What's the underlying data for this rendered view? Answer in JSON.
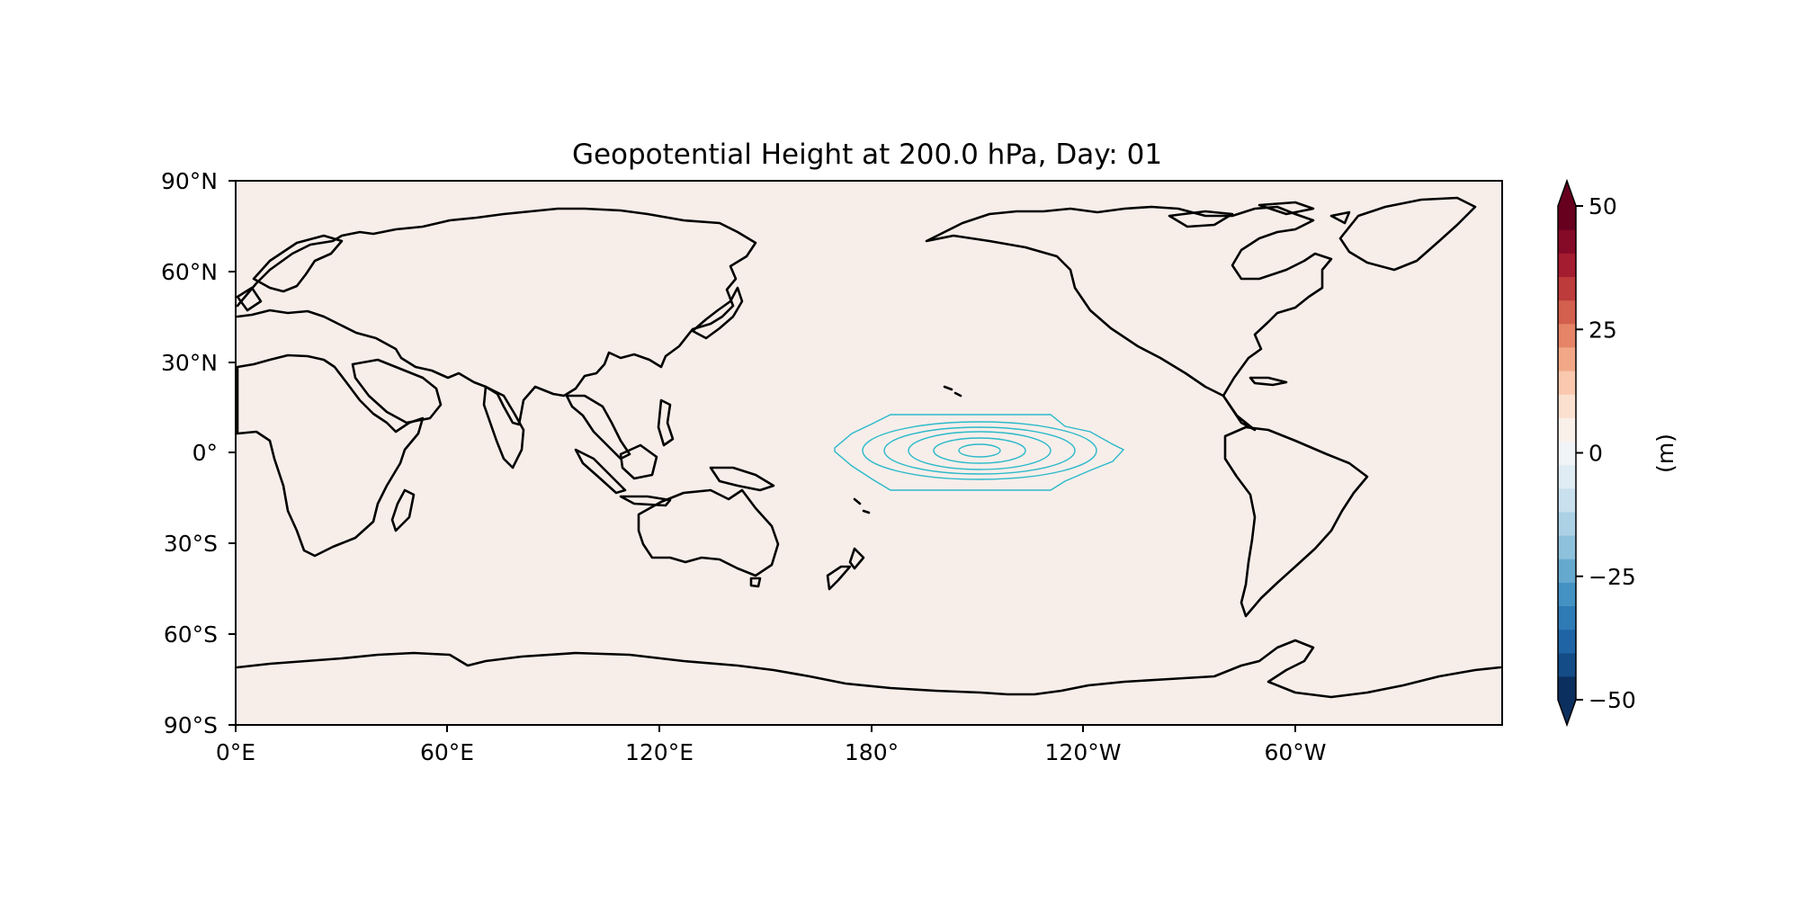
{
  "map": {
    "title": "Geopotential Height at 200.0 hPa, Day: 01",
    "projection": "PlateCarree centered 180°",
    "lon_ticks": [
      "0°E",
      "60°E",
      "120°E",
      "180°",
      "120°W",
      "60°W"
    ],
    "lat_ticks": [
      "90°N",
      "60°N",
      "30°N",
      "0°",
      "30°S",
      "60°S",
      "90°S"
    ],
    "background_color": "#f7eeea",
    "coastline_color": "#000000",
    "contour_color": "#2bb9c9",
    "anomaly_fill_color": "#f5e0d0"
  },
  "colorbar": {
    "label": "(m)",
    "ticks": [
      "50",
      "25",
      "0",
      "−25",
      "−50"
    ],
    "range": [
      -50,
      50
    ],
    "extend": "both",
    "colormap": "RdBu_r",
    "colors": [
      "#0b2f5e",
      "#144c87",
      "#1f65a5",
      "#2f7bb6",
      "#4392c3",
      "#66a9cf",
      "#8ec1dc",
      "#acd1e5",
      "#c9e0ee",
      "#e0ecf4",
      "#f1f4f7",
      "#faf0ea",
      "#fbe0d0",
      "#f9c8ae",
      "#f2a886",
      "#e58466",
      "#d35f4e",
      "#bd3b3b",
      "#a41c30",
      "#850a27",
      "#67001f"
    ]
  },
  "anomaly": {
    "center_lon": 150,
    "center_lat": 0,
    "contour_count": 5
  }
}
